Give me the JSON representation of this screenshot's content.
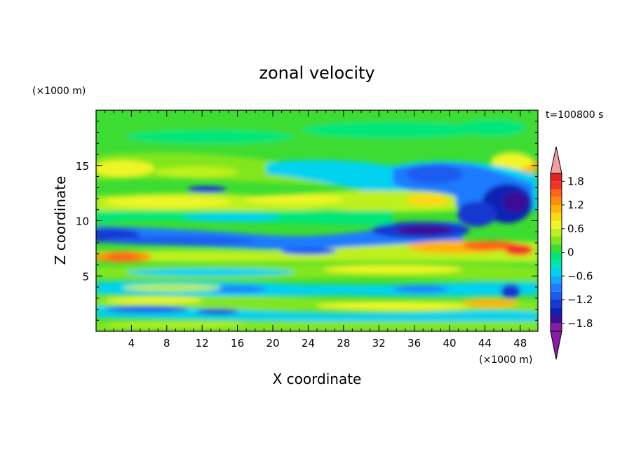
{
  "chart_data": {
    "type": "heatmap",
    "title": "zonal velocity",
    "xlabel": "X coordinate",
    "ylabel": "Z coordinate",
    "x_unit": "(×1000 m)",
    "y_unit": "(×1000 m)",
    "time_label": "t=100800 s",
    "xlim": [
      0,
      50
    ],
    "ylim": [
      0,
      20
    ],
    "x_ticks": [
      4,
      8,
      12,
      16,
      20,
      24,
      28,
      32,
      36,
      40,
      44,
      48
    ],
    "y_ticks": [
      5,
      10,
      15
    ],
    "colorbar": {
      "levels": [
        -2.0,
        -1.8,
        -1.6,
        -1.4,
        -1.2,
        -1.0,
        -0.8,
        -0.6,
        -0.4,
        -0.2,
        0,
        0.2,
        0.4,
        0.6,
        0.8,
        1.0,
        1.2,
        1.4,
        1.6,
        1.8,
        2.0
      ],
      "tick_labels": [
        "1.8",
        "1.2",
        "0.6",
        "0",
        "−0.6",
        "−1.2",
        "−1.8"
      ],
      "tick_values": [
        1.8,
        1.2,
        0.6,
        0,
        -0.6,
        -1.2,
        -1.8
      ],
      "colors": [
        "#8a1aa8",
        "#3a0f94",
        "#1020b4",
        "#1838d2",
        "#1a5cf0",
        "#1e7cff",
        "#14a8ff",
        "#00d2f0",
        "#00e6b0",
        "#00e678",
        "#3cdc32",
        "#82e61e",
        "#bef01e",
        "#eef528",
        "#ffd814",
        "#ffb40a",
        "#ff8c0a",
        "#ff6418",
        "#f53228",
        "#e61e1e",
        "#f5a0a0"
      ],
      "extend": "both"
    },
    "features": [
      {
        "x": 4,
        "z": 14.5,
        "u": 0.8
      },
      {
        "x": 48,
        "z": 15.2,
        "u": 1.2
      },
      {
        "x": 14,
        "z": 12.8,
        "u": -1.4
      },
      {
        "x": 46,
        "z": 11.7,
        "u": -1.9
      },
      {
        "x": 40,
        "z": 10.9,
        "u": -1.2
      },
      {
        "x": 38,
        "z": 9.1,
        "u": -1.7
      },
      {
        "x": 3,
        "z": 8.7,
        "u": -1.5
      },
      {
        "x": 16,
        "z": 8.0,
        "u": -0.9
      },
      {
        "x": 44,
        "z": 7.7,
        "u": 1.6
      },
      {
        "x": 5,
        "z": 6.8,
        "u": 1.4
      },
      {
        "x": 30,
        "z": 5.7,
        "u": 0.8
      },
      {
        "x": 10,
        "z": 2.1,
        "u": -1.2
      },
      {
        "x": 45,
        "z": 2.7,
        "u": 1.0
      }
    ]
  }
}
